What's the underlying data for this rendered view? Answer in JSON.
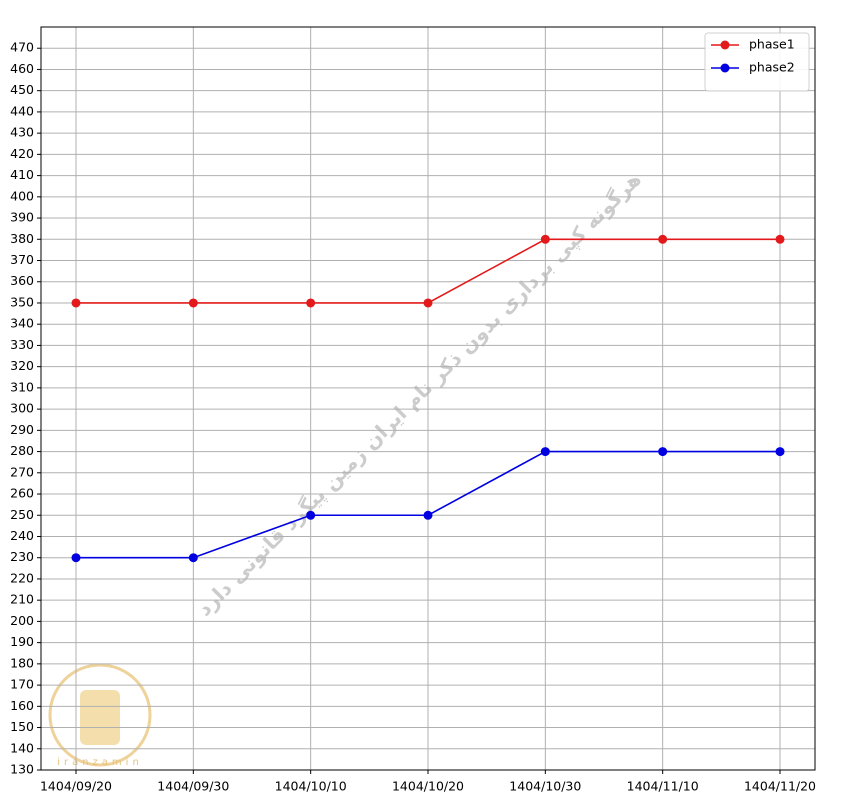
{
  "chart_data": {
    "type": "line",
    "categories": [
      "1404/09/20",
      "1404/09/30",
      "1404/10/10",
      "1404/10/20",
      "1404/10/30",
      "1404/11/10",
      "1404/11/20"
    ],
    "series": [
      {
        "name": "phase1",
        "color": "#e31a1c",
        "values": [
          350,
          350,
          350,
          350,
          380,
          380,
          380
        ]
      },
      {
        "name": "phase2",
        "color": "#0000e0",
        "values": [
          230,
          230,
          250,
          250,
          280,
          280,
          280
        ]
      }
    ],
    "ylim": [
      130,
      480
    ],
    "yticks": [
      130,
      140,
      150,
      160,
      170,
      180,
      190,
      200,
      210,
      220,
      230,
      240,
      250,
      260,
      270,
      280,
      290,
      300,
      310,
      320,
      330,
      340,
      350,
      360,
      370,
      380,
      390,
      400,
      410,
      420,
      430,
      440,
      450,
      460,
      470
    ],
    "grid": true,
    "legend": "upper right",
    "watermark": "هرگونه کپی برداری بدون ذکر نام ایران زمین پیگرد قانونی دارد",
    "logo_text": "iranzamin"
  }
}
